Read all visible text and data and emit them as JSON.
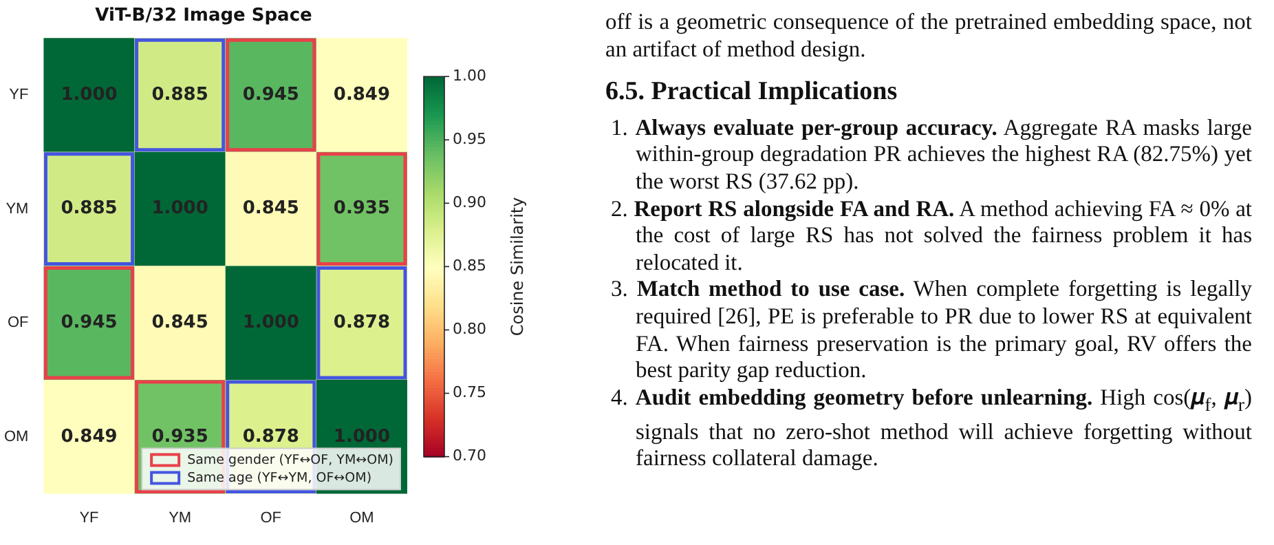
{
  "chart_data": {
    "type": "heatmap",
    "title": "ViT-B/32 Image Space",
    "categories": [
      "YF",
      "YM",
      "OF",
      "OM"
    ],
    "y_categories": [
      "YF",
      "YM",
      "OF",
      "OM"
    ],
    "cells": [
      [
        1.0,
        0.885,
        0.945,
        0.849
      ],
      [
        0.885,
        1.0,
        0.845,
        0.935
      ],
      [
        0.945,
        0.845,
        1.0,
        0.878
      ],
      [
        0.849,
        0.935,
        0.878,
        1.0
      ]
    ],
    "cell_labels": [
      [
        "1.000",
        "0.885",
        "0.945",
        "0.849"
      ],
      [
        "0.885",
        "1.000",
        "0.845",
        "0.935"
      ],
      [
        "0.945",
        "0.845",
        "1.000",
        "0.878"
      ],
      [
        "0.849",
        "0.935",
        "0.878",
        "1.000"
      ]
    ],
    "clim": [
      0.7,
      1.0
    ],
    "cticks": [
      {
        "value": 0.7,
        "label": "0.70"
      },
      {
        "value": 0.75,
        "label": "0.75"
      },
      {
        "value": 0.8,
        "label": "0.80"
      },
      {
        "value": 0.85,
        "label": "0.85"
      },
      {
        "value": 0.9,
        "label": "0.90"
      },
      {
        "value": 0.95,
        "label": "0.95"
      },
      {
        "value": 1.0,
        "label": "1.00"
      }
    ],
    "clabel": "Cosine Similarity",
    "series": [
      {
        "name": "Same gender (YF↔OF, YM↔OM)",
        "color": "#e8414a",
        "values": [
          null,
          null,
          null,
          null
        ]
      },
      {
        "name": "Same age (YF↔YM, OF↔OM)",
        "color": "#4455e0",
        "values": [
          null,
          null,
          null,
          null
        ]
      }
    ],
    "legend": "bottom right",
    "annotations": [
      "off is a geometric consequence of the pretrained embedding space, not an artifact of method design.",
      "6.5. Practical Implications",
      "1. Always evaluate per-group accuracy. Aggregate RA masks large within-group degradation PR achieves the highest RA (82.75%) yet the worst RS (37.62 pp).",
      "2. Report RS alongside FA and RA. A method achieving FA ≈ 0% at the cost of large RS has not solved the fairness problem it has relocated it.",
      "3. Match method to use case. When complete forgetting is legally required [26], PE is preferable to PR due to lower RS at equivalent FA. When fairness preservation is the primary goal, RV offers the best parity gap reduction.",
      "4. Audit embedding geometry before unlearning. High cos(𝝁$_{f}$, 𝝁$_{r}$) signals that no zero-shot method will achieve forgetting without fairness collateral damage."
    ]
  }
}
